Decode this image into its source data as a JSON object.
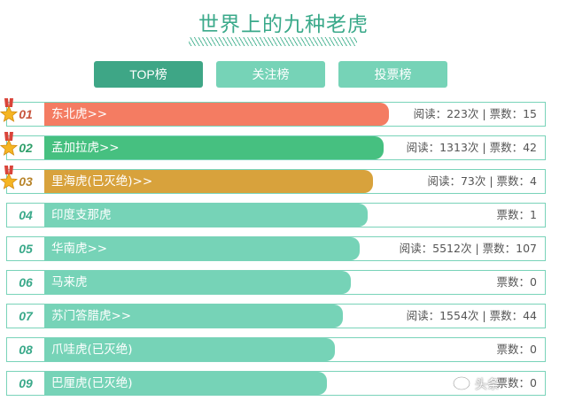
{
  "title": "世界上的九种老虎",
  "tabs": [
    {
      "label": "TOP榜",
      "active": true
    },
    {
      "label": "关注榜",
      "active": false
    },
    {
      "label": "投票榜",
      "active": false
    }
  ],
  "colors": {
    "gold_bar": "#f47c62",
    "silver_bar": "#46c080",
    "bronze_bar": "#d8a23c",
    "default_bar": "#76d3b7",
    "accent": "#3aa98a"
  },
  "rows": [
    {
      "rank": "01",
      "name": "东北虎>>",
      "stats": "阅读：223次 | 票数：15",
      "bar_fill": 0.71,
      "medal": true
    },
    {
      "rank": "02",
      "name": "孟加拉虎>>",
      "stats": "阅读：1313次 | 票数：42",
      "bar_fill": 0.7,
      "medal": true
    },
    {
      "rank": "03",
      "name": "里海虎(已灭绝)>>",
      "stats": "阅读：73次 | 票数：4",
      "bar_fill": 0.68,
      "medal": true
    },
    {
      "rank": "04",
      "name": "印度支那虎",
      "stats": "票数：1",
      "bar_fill": 0.67,
      "medal": false
    },
    {
      "rank": "05",
      "name": "华南虎>>",
      "stats": "阅读：5512次 | 票数：107",
      "bar_fill": 0.655,
      "medal": false
    },
    {
      "rank": "06",
      "name": "马来虎",
      "stats": "票数：0",
      "bar_fill": 0.64,
      "medal": false
    },
    {
      "rank": "07",
      "name": "苏门答腊虎>>",
      "stats": "阅读：1554次 | 票数：44",
      "bar_fill": 0.625,
      "medal": false
    },
    {
      "rank": "08",
      "name": "爪哇虎(已灭绝)",
      "stats": "票数：0",
      "bar_fill": 0.61,
      "medal": false
    },
    {
      "rank": "09",
      "name": "巴厘虎(已灭绝)",
      "stats": "票数：0",
      "bar_fill": 0.595,
      "medal": false
    }
  ],
  "watermark": "头条"
}
